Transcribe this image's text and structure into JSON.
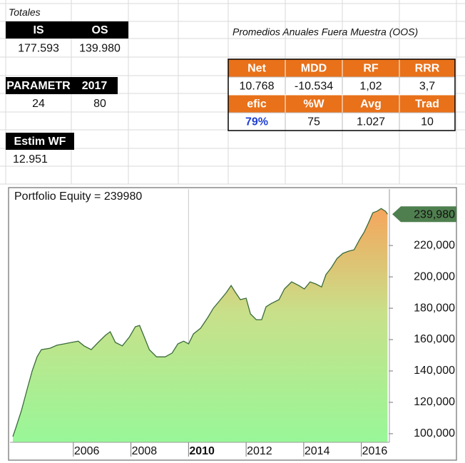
{
  "sheet": {
    "totals_label": "Totales",
    "totals": {
      "header": [
        "IS",
        "OS"
      ],
      "values": [
        "177.593",
        "139.980"
      ]
    },
    "params": {
      "header": [
        "PARAMETR",
        "2017"
      ],
      "values": [
        "24",
        "80"
      ]
    },
    "estim": {
      "header": "Estim WF",
      "value": "12.951"
    },
    "oos": {
      "title": "Promedios Anuales Fuera Muestra (OOS)",
      "rows": [
        [
          "Net",
          "MDD",
          "RF",
          "RRR"
        ],
        [
          "10.768",
          "-10.534",
          "1,02",
          "3,7"
        ],
        [
          "efic",
          "%W",
          "Avg",
          "Trad"
        ],
        [
          "79%",
          "75",
          "1.027",
          "10"
        ]
      ]
    }
  },
  "chart_data": {
    "type": "area",
    "title": "Portfolio Equity = 239980",
    "x": [
      2003.9,
      2004.0,
      2004.2,
      2004.4,
      2004.57,
      2004.74,
      2004.89,
      2005.19,
      2005.43,
      2005.68,
      2005.93,
      2006.17,
      2006.37,
      2006.62,
      2006.86,
      2007.11,
      2007.28,
      2007.46,
      2007.7,
      2007.95,
      2008.15,
      2008.3,
      2008.44,
      2008.64,
      2008.89,
      2009.19,
      2009.43,
      2009.63,
      2009.83,
      2010.0,
      2010.17,
      2010.42,
      2010.67,
      2010.86,
      2011.11,
      2011.31,
      2011.48,
      2011.6,
      2011.8,
      2012.0,
      2012.15,
      2012.35,
      2012.54,
      2012.69,
      2012.89,
      2013.14,
      2013.33,
      2013.58,
      2013.83,
      2014.02,
      2014.22,
      2014.42,
      2014.62,
      2014.77,
      2014.96,
      2015.16,
      2015.36,
      2015.56,
      2015.75,
      2015.95,
      2016.1,
      2016.25,
      2016.4,
      2016.54,
      2016.69,
      2016.84,
      2016.91
    ],
    "values": [
      98200,
      103600,
      115000,
      128600,
      140000,
      149000,
      153600,
      154500,
      156400,
      157300,
      158200,
      159000,
      156000,
      153600,
      158200,
      162700,
      165000,
      158200,
      156000,
      161800,
      168200,
      169000,
      162700,
      153600,
      149000,
      149000,
      151400,
      157300,
      159000,
      157300,
      163600,
      167300,
      174100,
      180000,
      185500,
      190000,
      194500,
      190900,
      185500,
      186400,
      176400,
      172700,
      172700,
      180900,
      183200,
      185500,
      192300,
      196800,
      194500,
      192300,
      196800,
      195500,
      193600,
      201400,
      205900,
      211800,
      215000,
      216400,
      217300,
      224100,
      228600,
      234500,
      240900,
      241800,
      243600,
      241800,
      239980
    ],
    "color": "#3b6b3b",
    "xlim": [
      2003.8,
      2016.95
    ],
    "xticks": [
      2006,
      2008,
      2010,
      2012,
      2014,
      2016
    ],
    "ylim": [
      94500,
      256000
    ],
    "yticks": [
      {
        "value": 100000,
        "label": "100,000"
      },
      {
        "value": 120000,
        "label": "120,000"
      },
      {
        "value": 140000,
        "label": "140,000"
      },
      {
        "value": 160000,
        "label": "160,000"
      },
      {
        "value": 180000,
        "label": "180,000"
      },
      {
        "value": 200000,
        "label": "200,000"
      },
      {
        "value": 220000,
        "label": "220,000"
      }
    ],
    "last_value_label": {
      "value": 239980,
      "label": "239,980"
    }
  }
}
